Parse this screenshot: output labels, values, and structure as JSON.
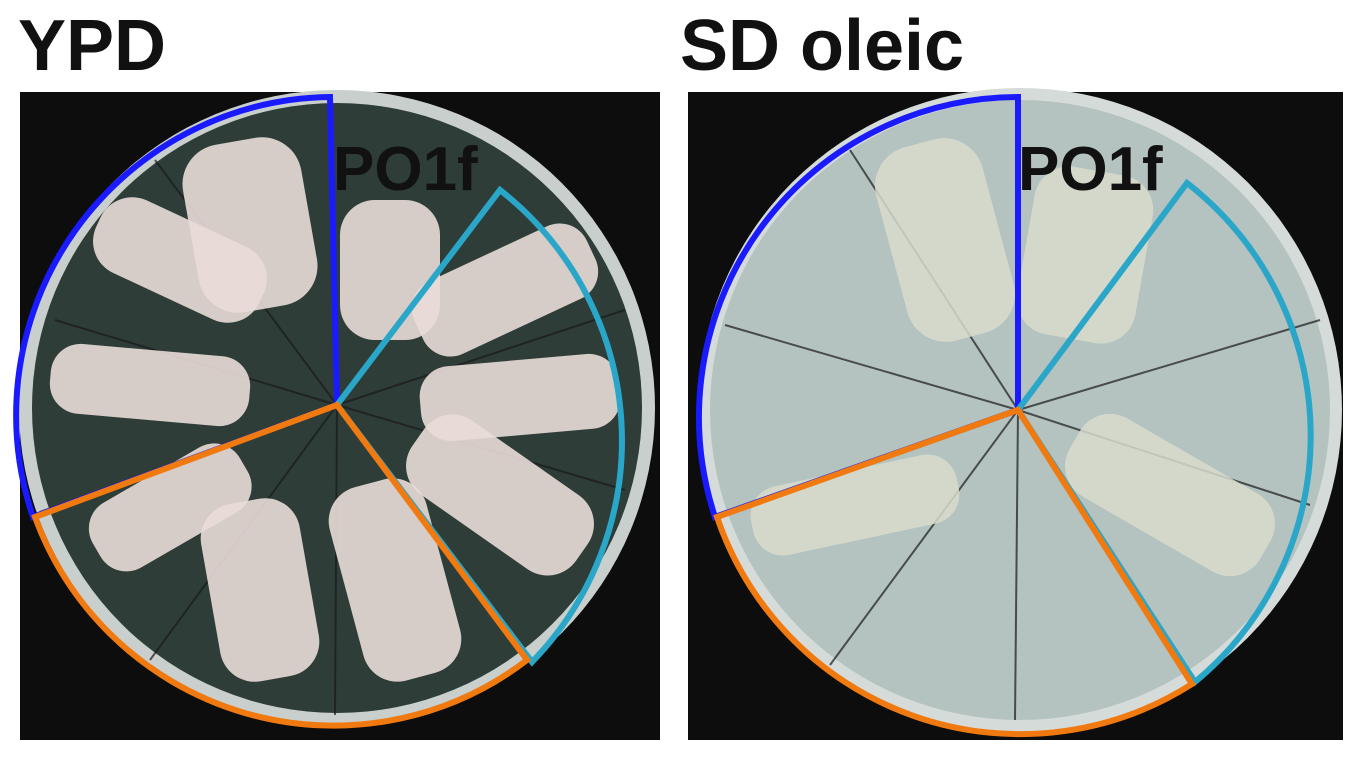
{
  "panels": [
    {
      "title": "YPD",
      "label": "PO1f"
    },
    {
      "title": "SD oleic",
      "label": "PO1f"
    }
  ]
}
